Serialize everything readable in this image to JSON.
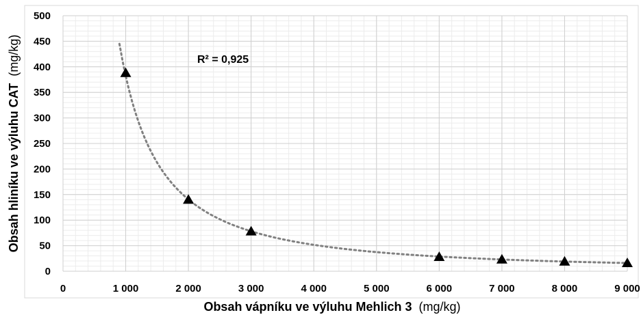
{
  "chart_data": {
    "type": "scatter",
    "title": "",
    "xlabel": "Obsah vápníku ve výluhu Mehlich 3",
    "xlabel_unit": "(mg/kg)",
    "ylabel": "Obsah hliníku ve výluhu CAT",
    "ylabel_unit": "(mg/kg)",
    "xlim": [
      0,
      9000
    ],
    "ylim": [
      0,
      500
    ],
    "x_ticks": [
      0,
      1000,
      2000,
      3000,
      4000,
      5000,
      6000,
      7000,
      8000,
      9000
    ],
    "x_tick_labels": [
      "0",
      "1 000",
      "2 000",
      "3 000",
      "4 000",
      "5 000",
      "6 000",
      "7 000",
      "8 000",
      "9 000"
    ],
    "y_ticks": [
      0,
      50,
      100,
      150,
      200,
      250,
      300,
      350,
      400,
      450,
      500
    ],
    "y_tick_labels": [
      "0",
      "50",
      "100",
      "150",
      "200",
      "250",
      "300",
      "350",
      "400",
      "450",
      "500"
    ],
    "grid": true,
    "marker": "triangle",
    "marker_color": "#000000",
    "series": [
      {
        "x": [
          1000,
          2000,
          3000,
          6000,
          7000,
          8000,
          9000
        ],
        "y": [
          388,
          140,
          78,
          28,
          23,
          19,
          16
        ]
      }
    ],
    "trendline": {
      "type": "power",
      "style": "dotted",
      "color": "#808080",
      "x_range": [
        900,
        9000
      ],
      "x": [
        900,
        9000
      ],
      "y": [
        445,
        16
      ]
    },
    "annotation": {
      "text": "R² = 0,925"
    }
  }
}
